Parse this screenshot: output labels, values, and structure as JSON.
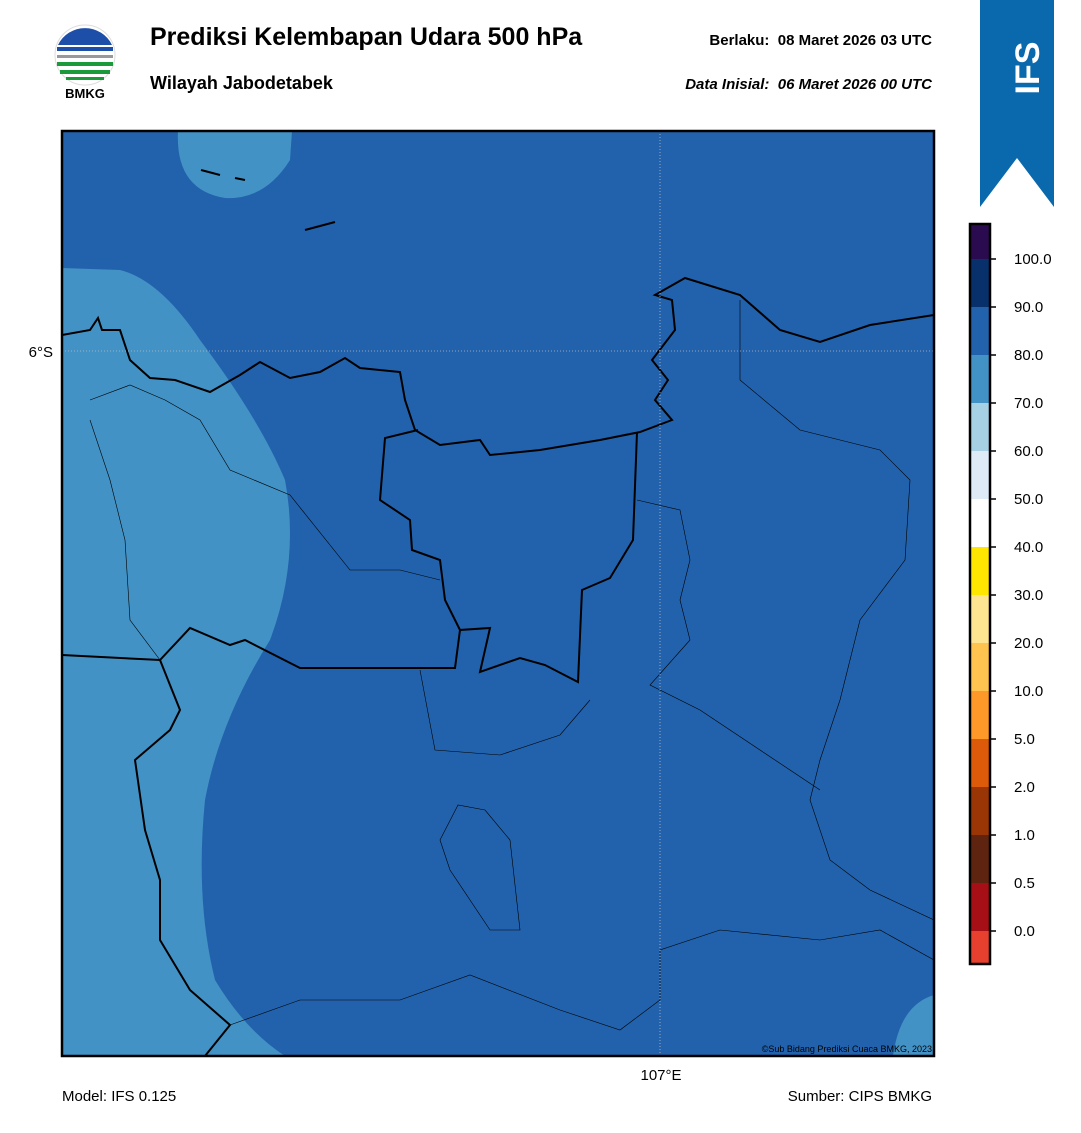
{
  "header": {
    "logo_text": "BMKG",
    "title": "Prediksi Kelembapan Udara 500 hPa",
    "subtitle": "Wilayah Jabodetabek",
    "valid": "Berlaku:  08 Maret 2026 03 UTC",
    "initial": "Data Inisial:  06 Maret 2026 00 UTC"
  },
  "banner": "IFS",
  "map": {
    "lat_label": "6°S",
    "lon_label": "107°E",
    "credit": "©Sub Bidang Prediksi Cuaca BMKG, 2023"
  },
  "legend": {
    "colors": [
      "#2a0b4f",
      "#08306b",
      "#2262ac",
      "#4292c6",
      "#a6d0e4",
      "#deebf7",
      "#ffffff",
      "#ffe600",
      "#fee391",
      "#fec44f",
      "#fe9929",
      "#dd5a0b",
      "#9a3505",
      "#5e2410",
      "#a50f15",
      "#e8402f"
    ],
    "labels": [
      "100.0",
      "90.0",
      "80.0",
      "70.0",
      "60.0",
      "50.0",
      "40.0",
      "30.0",
      "20.0",
      "10.0",
      "5.0",
      "2.0",
      "1.0",
      "0.5",
      "0.0"
    ]
  },
  "footer": {
    "model": "Model: IFS 0.125",
    "source": "Sumber: CIPS BMKG"
  }
}
